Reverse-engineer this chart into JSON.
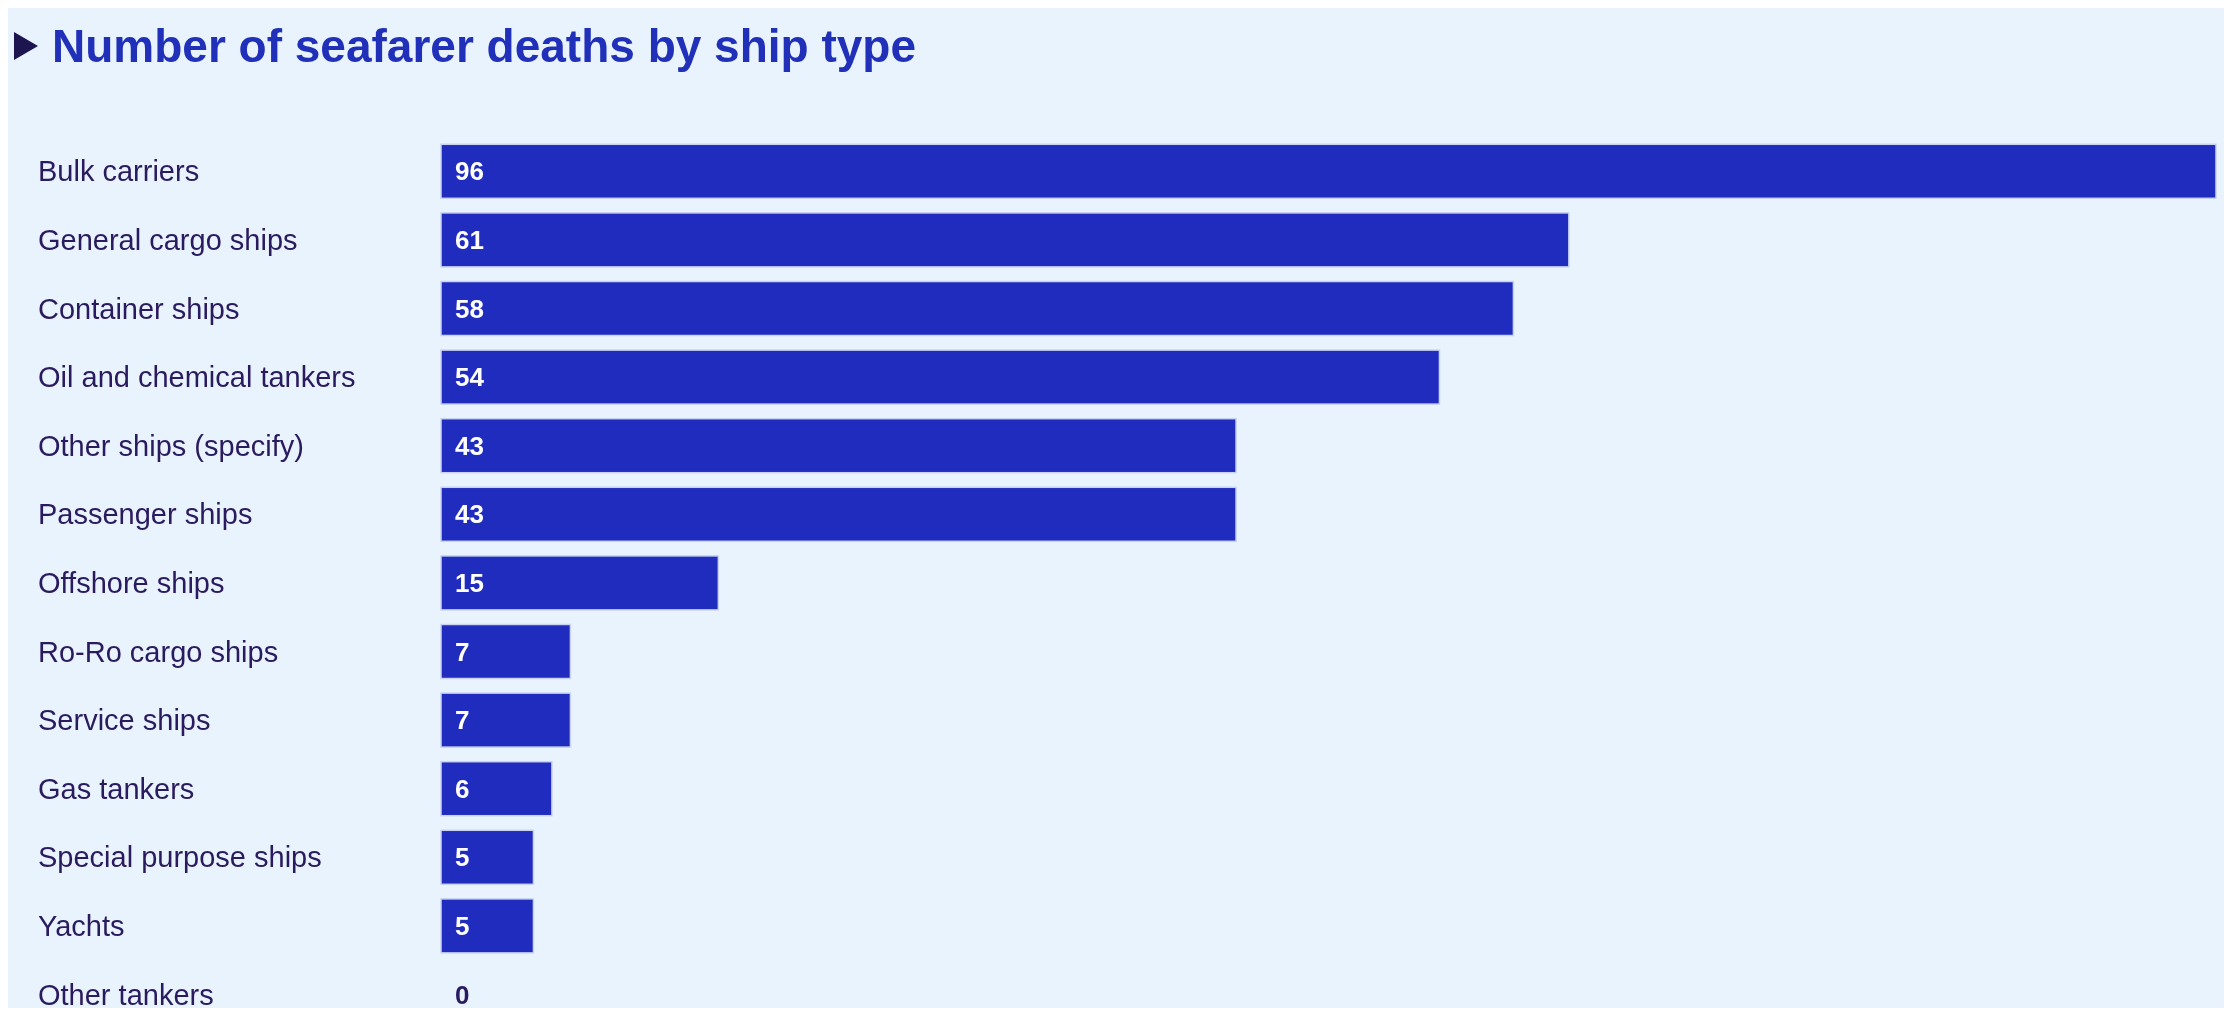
{
  "chart_data": {
    "type": "bar",
    "orientation": "horizontal",
    "title": "Number of seafarer deaths by ship type",
    "categories": [
      "Bulk carriers",
      "General cargo ships",
      "Container ships",
      "Oil and chemical tankers",
      "Other ships (specify)",
      "Passenger ships",
      "Offshore ships",
      "Ro-Ro cargo ships",
      "Service ships",
      "Gas tankers",
      "Special purpose ships",
      "Yachts",
      "Other tankers"
    ],
    "values": [
      96,
      61,
      58,
      54,
      43,
      43,
      15,
      7,
      7,
      6,
      5,
      5,
      0
    ],
    "color": "#1f2cbd",
    "data_labels": true
  }
}
